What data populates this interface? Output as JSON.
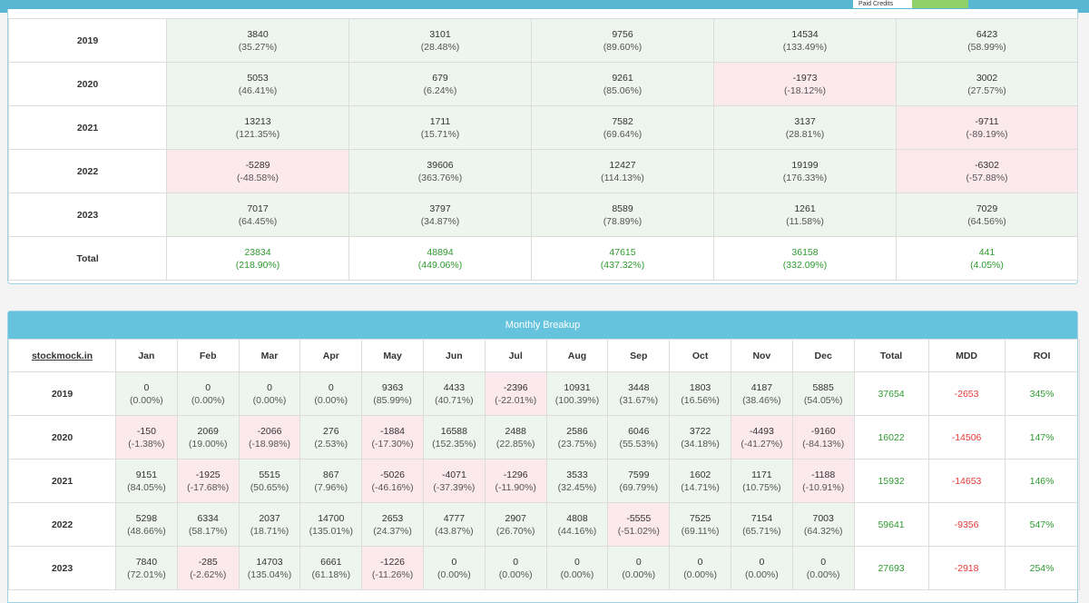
{
  "top_bar": {
    "credits_label": "Paid Credits"
  },
  "yearly_table": {
    "rows": [
      {
        "year": "2019",
        "cells": [
          [
            "3840",
            "(35.27%)"
          ],
          [
            "3101",
            "(28.48%)"
          ],
          [
            "9756",
            "(89.60%)"
          ],
          [
            "14534",
            "(133.49%)"
          ],
          [
            "6423",
            "(58.99%)"
          ]
        ]
      },
      {
        "year": "2020",
        "cells": [
          [
            "5053",
            "(46.41%)"
          ],
          [
            "679",
            "(6.24%)"
          ],
          [
            "9261",
            "(85.06%)"
          ],
          [
            "-1973",
            "(-18.12%)"
          ],
          [
            "3002",
            "(27.57%)"
          ]
        ]
      },
      {
        "year": "2021",
        "cells": [
          [
            "13213",
            "(121.35%)"
          ],
          [
            "1711",
            "(15.71%)"
          ],
          [
            "7582",
            "(69.64%)"
          ],
          [
            "3137",
            "(28.81%)"
          ],
          [
            "-9711",
            "(-89.19%)"
          ]
        ]
      },
      {
        "year": "2022",
        "cells": [
          [
            "-5289",
            "(-48.58%)"
          ],
          [
            "39606",
            "(363.76%)"
          ],
          [
            "12427",
            "(114.13%)"
          ],
          [
            "19199",
            "(176.33%)"
          ],
          [
            "-6302",
            "(-57.88%)"
          ]
        ]
      },
      {
        "year": "2023",
        "cells": [
          [
            "7017",
            "(64.45%)"
          ],
          [
            "3797",
            "(34.87%)"
          ],
          [
            "8589",
            "(78.89%)"
          ],
          [
            "1261",
            "(11.58%)"
          ],
          [
            "7029",
            "(64.56%)"
          ]
        ]
      }
    ],
    "total": {
      "label": "Total",
      "cells": [
        [
          "23834",
          "(218.90%)"
        ],
        [
          "48894",
          "(449.06%)"
        ],
        [
          "47615",
          "(437.32%)"
        ],
        [
          "36158",
          "(332.09%)"
        ],
        [
          "441",
          "(4.05%)"
        ]
      ]
    }
  },
  "monthly_table": {
    "title": "Monthly Breakup",
    "header": [
      "stockmock.in",
      "Jan",
      "Feb",
      "Mar",
      "Apr",
      "May",
      "Jun",
      "Jul",
      "Aug",
      "Sep",
      "Oct",
      "Nov",
      "Dec",
      "Total",
      "MDD",
      "ROI"
    ],
    "rows": [
      {
        "year": "2019",
        "cells": [
          [
            "0",
            "(0.00%)"
          ],
          [
            "0",
            "(0.00%)"
          ],
          [
            "0",
            "(0.00%)"
          ],
          [
            "0",
            "(0.00%)"
          ],
          [
            "9363",
            "(85.99%)"
          ],
          [
            "4433",
            "(40.71%)"
          ],
          [
            "-2396",
            "(-22.01%)"
          ],
          [
            "10931",
            "(100.39%)"
          ],
          [
            "3448",
            "(31.67%)"
          ],
          [
            "1803",
            "(16.56%)"
          ],
          [
            "4187",
            "(38.46%)"
          ],
          [
            "5885",
            "(54.05%)"
          ]
        ],
        "total": "37654",
        "mdd": "-2653",
        "roi": "345%"
      },
      {
        "year": "2020",
        "cells": [
          [
            "-150",
            "(-1.38%)"
          ],
          [
            "2069",
            "(19.00%)"
          ],
          [
            "-2066",
            "(-18.98%)"
          ],
          [
            "276",
            "(2.53%)"
          ],
          [
            "-1884",
            "(-17.30%)"
          ],
          [
            "16588",
            "(152.35%)"
          ],
          [
            "2488",
            "(22.85%)"
          ],
          [
            "2586",
            "(23.75%)"
          ],
          [
            "6046",
            "(55.53%)"
          ],
          [
            "3722",
            "(34.18%)"
          ],
          [
            "-4493",
            "(-41.27%)"
          ],
          [
            "-9160",
            "(-84.13%)"
          ]
        ],
        "total": "16022",
        "mdd": "-14506",
        "roi": "147%"
      },
      {
        "year": "2021",
        "cells": [
          [
            "9151",
            "(84.05%)"
          ],
          [
            "-1925",
            "(-17.68%)"
          ],
          [
            "5515",
            "(50.65%)"
          ],
          [
            "867",
            "(7.96%)"
          ],
          [
            "-5026",
            "(-46.16%)"
          ],
          [
            "-4071",
            "(-37.39%)"
          ],
          [
            "-1296",
            "(-11.90%)"
          ],
          [
            "3533",
            "(32.45%)"
          ],
          [
            "7599",
            "(69.79%)"
          ],
          [
            "1602",
            "(14.71%)"
          ],
          [
            "1171",
            "(10.75%)"
          ],
          [
            "-1188",
            "(-10.91%)"
          ]
        ],
        "total": "15932",
        "mdd": "-14653",
        "roi": "146%"
      },
      {
        "year": "2022",
        "cells": [
          [
            "5298",
            "(48.66%)"
          ],
          [
            "6334",
            "(58.17%)"
          ],
          [
            "2037",
            "(18.71%)"
          ],
          [
            "14700",
            "(135.01%)"
          ],
          [
            "2653",
            "(24.37%)"
          ],
          [
            "4777",
            "(43.87%)"
          ],
          [
            "2907",
            "(26.70%)"
          ],
          [
            "4808",
            "(44.16%)"
          ],
          [
            "-5555",
            "(-51.02%)"
          ],
          [
            "7525",
            "(69.11%)"
          ],
          [
            "7154",
            "(65.71%)"
          ],
          [
            "7003",
            "(64.32%)"
          ]
        ],
        "total": "59641",
        "mdd": "-9356",
        "roi": "547%"
      },
      {
        "year": "2023",
        "cells": [
          [
            "7840",
            "(72.01%)"
          ],
          [
            "-285",
            "(-2.62%)"
          ],
          [
            "14703",
            "(135.04%)"
          ],
          [
            "6661",
            "(61.18%)"
          ],
          [
            "-1226",
            "(-11.26%)"
          ],
          [
            "0",
            "(0.00%)"
          ],
          [
            "0",
            "(0.00%)"
          ],
          [
            "0",
            "(0.00%)"
          ],
          [
            "0",
            "(0.00%)"
          ],
          [
            "0",
            "(0.00%)"
          ],
          [
            "0",
            "(0.00%)"
          ],
          [
            "0",
            "(0.00%)"
          ]
        ],
        "total": "27693",
        "mdd": "-2918",
        "roi": "254%"
      }
    ]
  }
}
